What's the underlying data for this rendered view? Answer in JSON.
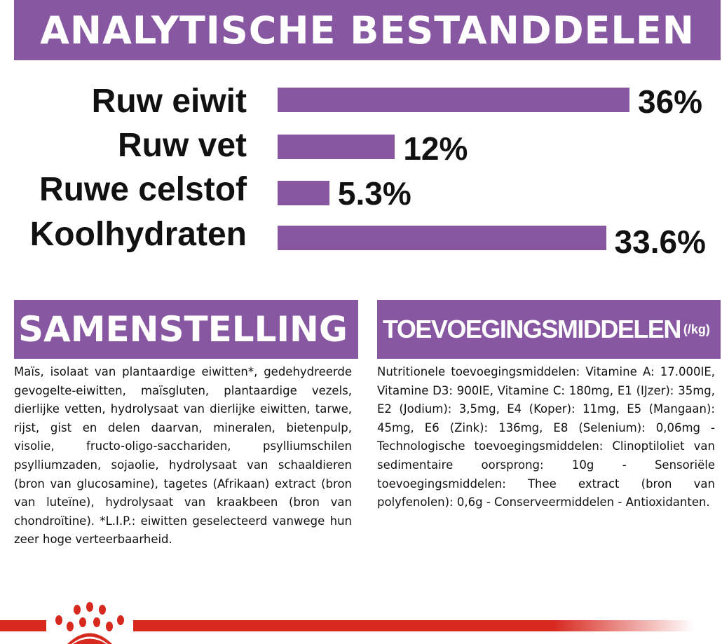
{
  "analytical": {
    "title": "ANALYTISCHE BESTANDDELEN",
    "items": [
      {
        "label": "Ruw eiwit",
        "value": 36,
        "display": "36%"
      },
      {
        "label": "Ruw vet",
        "value": 12,
        "display": "12%"
      },
      {
        "label": "Ruwe celstof",
        "value": 5.3,
        "display": "5.3%"
      },
      {
        "label": "Koolhydraten",
        "value": 33.6,
        "display": "33.6%"
      }
    ],
    "bar_color": "#8757a1"
  },
  "composition": {
    "title": "SAMENSTELLING",
    "text": "Maïs, isolaat van plantaardige eiwitten*, gedehydreerde gevogelte-eiwitten, maïsgluten, plantaardige vezels, dierlijke vetten, hydrolysaat van dierlijke eiwitten, tarwe, rijst, gist en delen daarvan, mineralen, bietenpulp, visolie, fructo-oligo-sacchariden, psylliumschilen psylliumzaden, sojaolie, hydrolysaat van schaaldieren (bron van glucosamine), tagetes (Afrikaan) extract (bron van luteïne), hydrolysaat van kraakbeen (bron van chondroïtine). *L.I.P.: eiwitten geselecteerd vanwege hun zeer hoge verteerbaarheid."
  },
  "additives": {
    "title": "TOEVOEGINGSMIDDELEN",
    "unit": "(/kg)",
    "text": "Nutritionele toevoegingsmiddelen: Vitamine A: 17.000IE, Vitamine D3: 900IE, Vitamine C: 180mg, E1 (IJzer): 35mg, E2 (Jodium): 3,5mg, E4 (Koper): 11mg, E5 (Mangaan): 45mg, E6 (Zink): 136mg, E8 (Selenium): 0,06mg - Technologische toevoegingsmiddelen: Clinoptiloliet van sedimentaire oorsprong: 10g - Sensoriële toevoegingsmiddelen: Thee extract (bron van polyfenolen): 0,6g - Conserveermiddelen - Antioxidanten."
  },
  "footer": {
    "logo": "royal-canin-crown-paw-icon",
    "brand_color": "#d8291f"
  }
}
